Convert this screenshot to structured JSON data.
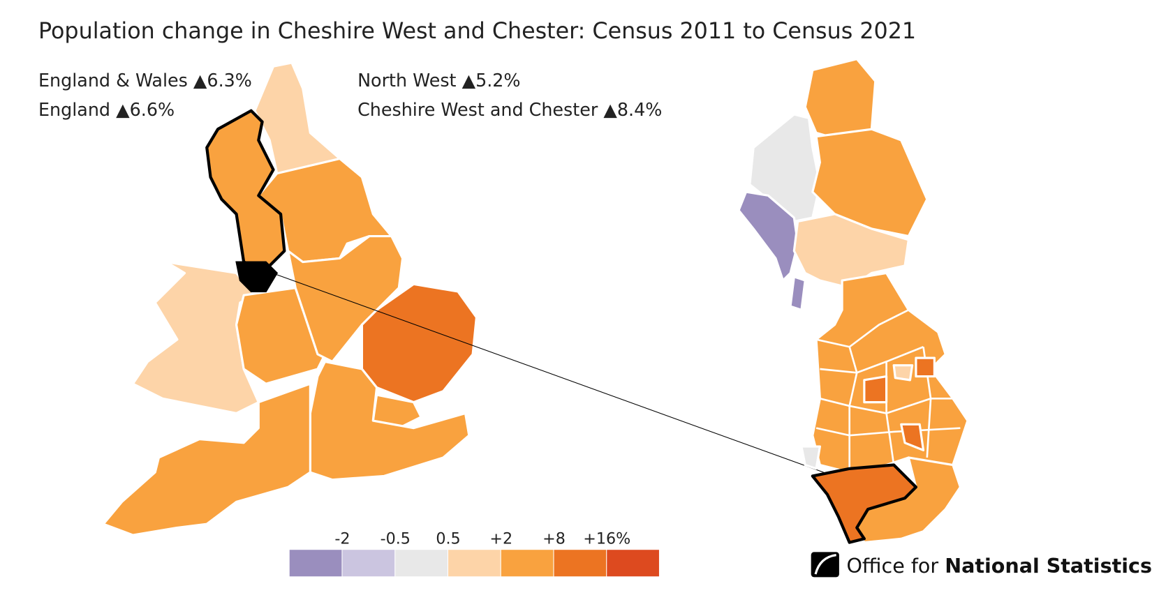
{
  "title": "Population change in Cheshire West and Chester: Census 2011 to Census 2021",
  "stats": [
    {
      "name": "England & Wales",
      "change": "▲6.3%"
    },
    {
      "name": "England",
      "change": "▲6.6%"
    },
    {
      "name": "North West",
      "change": "▲5.2%"
    },
    {
      "name": "Cheshire West and Chester",
      "change": "▲8.4%"
    }
  ],
  "legend": {
    "colors": [
      "#9a8ebe",
      "#cbc5e0",
      "#e8e8e8",
      "#fdd4a8",
      "#f9a23f",
      "#ec7422",
      "#dd4a1f"
    ],
    "breaks": [
      -2,
      -0.5,
      0.5,
      {
        "value": 2,
        "label": "+2"
      },
      {
        "value": 8,
        "label": "+8"
      },
      {
        "value": 16,
        "label": "+16%"
      }
    ]
  },
  "logo": {
    "light": "Office for",
    "bold": "National Statistics"
  }
}
